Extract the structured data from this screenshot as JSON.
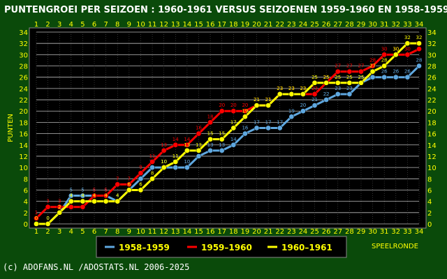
{
  "chart_data": {
    "type": "line",
    "title": "PUNTENGROEI PER SEIZOEN : 1960-1961 VERSUS SEIZOENEN 1959-1960 EN 1958-1959",
    "ylabel": "PUNTEN",
    "xlabel": "SPEELRONDE",
    "x": [
      1,
      2,
      3,
      4,
      5,
      6,
      7,
      8,
      9,
      10,
      11,
      12,
      13,
      14,
      15,
      16,
      17,
      18,
      19,
      20,
      21,
      22,
      23,
      24,
      25,
      26,
      27,
      28,
      29,
      30,
      31,
      32,
      33,
      34
    ],
    "xlim": [
      1,
      34
    ],
    "ylim": [
      0,
      34
    ],
    "yticks": [
      0,
      2,
      4,
      6,
      8,
      10,
      12,
      14,
      16,
      18,
      20,
      22,
      24,
      26,
      28,
      30,
      32,
      34
    ],
    "grid": true,
    "legend_placement": "bottom-center",
    "series": [
      {
        "name": "1958–1959",
        "color": "#5fa8e0",
        "values": [
          0,
          0,
          2,
          5,
          5,
          5,
          5,
          4,
          6,
          8,
          10,
          10,
          10,
          10,
          12,
          13,
          13,
          14,
          16,
          17,
          17,
          17,
          19,
          20,
          21,
          22,
          23,
          23,
          25,
          26,
          26,
          26,
          26,
          28
        ]
      },
      {
        "name": "1959–1960",
        "color": "#ff0000",
        "values": [
          1,
          3,
          3,
          3,
          3,
          5,
          5,
          7,
          7,
          9,
          11,
          13,
          14,
          14,
          16,
          18,
          20,
          20,
          20,
          21,
          21,
          23,
          23,
          23,
          23,
          25,
          27,
          27,
          27,
          28,
          30,
          30,
          30,
          31
        ]
      },
      {
        "name": "1960–1961",
        "color": "#ffff00",
        "values": [
          0,
          0,
          2,
          4,
          4,
          4,
          4,
          4,
          6,
          6,
          8,
          10,
          11,
          13,
          13,
          15,
          15,
          17,
          19,
          21,
          21,
          23,
          23,
          23,
          25,
          25,
          25,
          25,
          25,
          27,
          28,
          30,
          32,
          32
        ]
      }
    ]
  },
  "footer": "(c) ADOFANS.NL /ADOSTATS.NL 2006-2025",
  "colors": {
    "background": "#0a4a0a",
    "plot_area": "#000000",
    "grid": "#cccccc",
    "text": "#ffff00"
  }
}
